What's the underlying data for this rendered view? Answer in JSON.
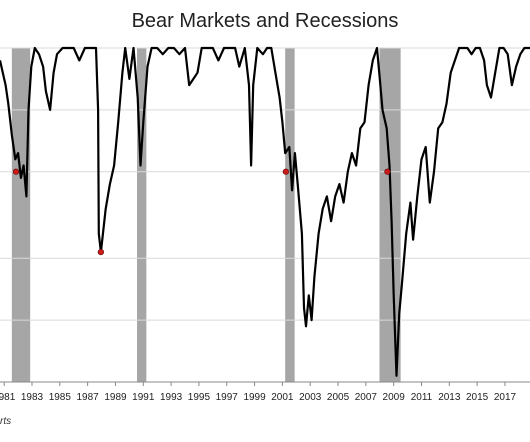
{
  "chart_data": {
    "type": "line",
    "title": "Bear Markets and Recessions",
    "xlabel": "",
    "ylabel": "",
    "x_ticks": [
      "1981",
      "1983",
      "1985",
      "1987",
      "1989",
      "1991",
      "1993",
      "1995",
      "1997",
      "1999",
      "2001",
      "2003",
      "2005",
      "2007",
      "2009",
      "2011",
      "2013",
      "2015",
      "2017"
    ],
    "xlim": [
      1980.7,
      2018.8
    ],
    "ylim": [
      -0.54,
      0
    ],
    "grid": "horizontal",
    "gridlines": [
      -0.54,
      -0.44,
      -0.34,
      -0.2,
      -0.1,
      0
    ],
    "recessions": [
      {
        "start": 1981.55,
        "end": 1982.87
      },
      {
        "start": 1990.55,
        "end": 1991.22
      },
      {
        "start": 2001.2,
        "end": 2001.88
      },
      {
        "start": 2007.98,
        "end": 2009.5
      }
    ],
    "series": [
      {
        "values": [
          [
            1980.7,
            -0.02
          ],
          [
            1980.9,
            -0.04
          ],
          [
            1981.1,
            -0.06
          ],
          [
            1981.3,
            -0.09
          ],
          [
            1981.55,
            -0.14
          ],
          [
            1981.8,
            -0.18
          ],
          [
            1982.0,
            -0.17
          ],
          [
            1982.2,
            -0.21
          ],
          [
            1982.4,
            -0.19
          ],
          [
            1982.6,
            -0.24
          ],
          [
            1982.75,
            -0.1
          ],
          [
            1982.95,
            -0.03
          ],
          [
            1983.2,
            0
          ],
          [
            1983.5,
            -0.01
          ],
          [
            1983.8,
            -0.03
          ],
          [
            1984.0,
            -0.07
          ],
          [
            1984.3,
            -0.1
          ],
          [
            1984.55,
            -0.04
          ],
          [
            1984.8,
            -0.01
          ],
          [
            1985.2,
            0
          ],
          [
            1985.6,
            0
          ],
          [
            1986.0,
            0
          ],
          [
            1986.4,
            -0.02
          ],
          [
            1986.8,
            0
          ],
          [
            1987.2,
            0
          ],
          [
            1987.6,
            0
          ],
          [
            1987.75,
            -0.1
          ],
          [
            1987.8,
            -0.3
          ],
          [
            1987.95,
            -0.33
          ],
          [
            1988.3,
            -0.26
          ],
          [
            1988.6,
            -0.22
          ],
          [
            1988.9,
            -0.19
          ],
          [
            1989.2,
            -0.12
          ],
          [
            1989.5,
            -0.04
          ],
          [
            1989.7,
            0
          ],
          [
            1990.0,
            -0.05
          ],
          [
            1990.3,
            0
          ],
          [
            1990.6,
            -0.08
          ],
          [
            1990.8,
            -0.19
          ],
          [
            1991.0,
            -0.12
          ],
          [
            1991.3,
            -0.03
          ],
          [
            1991.6,
            0
          ],
          [
            1992.0,
            0
          ],
          [
            1992.4,
            -0.01
          ],
          [
            1992.8,
            0
          ],
          [
            1993.2,
            0
          ],
          [
            1993.6,
            -0.01
          ],
          [
            1994.0,
            0
          ],
          [
            1994.3,
            -0.06
          ],
          [
            1994.6,
            -0.05
          ],
          [
            1994.9,
            -0.04
          ],
          [
            1995.2,
            0
          ],
          [
            1995.6,
            0
          ],
          [
            1996.0,
            0
          ],
          [
            1996.4,
            -0.02
          ],
          [
            1996.8,
            0
          ],
          [
            1997.2,
            0
          ],
          [
            1997.6,
            0
          ],
          [
            1997.9,
            -0.03
          ],
          [
            1998.3,
            0
          ],
          [
            1998.6,
            -0.06
          ],
          [
            1998.75,
            -0.19
          ],
          [
            1998.9,
            -0.06
          ],
          [
            1999.2,
            0
          ],
          [
            1999.6,
            -0.01
          ],
          [
            1999.9,
            0
          ],
          [
            2000.2,
            0
          ],
          [
            2000.5,
            -0.04
          ],
          [
            2000.8,
            -0.08
          ],
          [
            2001.0,
            -0.12
          ],
          [
            2001.2,
            -0.17
          ],
          [
            2001.5,
            -0.16
          ],
          [
            2001.7,
            -0.23
          ],
          [
            2001.9,
            -0.17
          ],
          [
            2002.1,
            -0.22
          ],
          [
            2002.4,
            -0.3
          ],
          [
            2002.55,
            -0.42
          ],
          [
            2002.7,
            -0.45
          ],
          [
            2002.9,
            -0.4
          ],
          [
            2003.1,
            -0.44
          ],
          [
            2003.3,
            -0.37
          ],
          [
            2003.6,
            -0.3
          ],
          [
            2003.9,
            -0.26
          ],
          [
            2004.2,
            -0.24
          ],
          [
            2004.5,
            -0.28
          ],
          [
            2004.8,
            -0.24
          ],
          [
            2005.1,
            -0.22
          ],
          [
            2005.4,
            -0.25
          ],
          [
            2005.7,
            -0.2
          ],
          [
            2006.0,
            -0.17
          ],
          [
            2006.3,
            -0.19
          ],
          [
            2006.6,
            -0.13
          ],
          [
            2006.9,
            -0.12
          ],
          [
            2007.2,
            -0.06
          ],
          [
            2007.5,
            -0.02
          ],
          [
            2007.8,
            0
          ],
          [
            2008.0,
            -0.05
          ],
          [
            2008.2,
            -0.1
          ],
          [
            2008.5,
            -0.13
          ],
          [
            2008.7,
            -0.19
          ],
          [
            2008.85,
            -0.28
          ],
          [
            2009.0,
            -0.4
          ],
          [
            2009.2,
            -0.53
          ],
          [
            2009.4,
            -0.43
          ],
          [
            2009.6,
            -0.38
          ],
          [
            2009.9,
            -0.3
          ],
          [
            2010.2,
            -0.25
          ],
          [
            2010.4,
            -0.31
          ],
          [
            2010.7,
            -0.24
          ],
          [
            2011.0,
            -0.18
          ],
          [
            2011.3,
            -0.16
          ],
          [
            2011.6,
            -0.25
          ],
          [
            2011.9,
            -0.2
          ],
          [
            2012.2,
            -0.13
          ],
          [
            2012.5,
            -0.12
          ],
          [
            2012.8,
            -0.09
          ],
          [
            2013.1,
            -0.04
          ],
          [
            2013.4,
            -0.02
          ],
          [
            2013.7,
            0
          ],
          [
            2014.0,
            0
          ],
          [
            2014.3,
            0
          ],
          [
            2014.6,
            -0.01
          ],
          [
            2014.9,
            0
          ],
          [
            2015.2,
            0
          ],
          [
            2015.5,
            -0.02
          ],
          [
            2015.7,
            -0.06
          ],
          [
            2016.0,
            -0.08
          ],
          [
            2016.3,
            -0.04
          ],
          [
            2016.6,
            0
          ],
          [
            2016.9,
            0
          ],
          [
            2017.2,
            -0.01
          ],
          [
            2017.5,
            -0.06
          ],
          [
            2017.8,
            -0.03
          ],
          [
            2018.1,
            -0.01
          ],
          [
            2018.4,
            0
          ],
          [
            2018.8,
            0
          ]
        ]
      }
    ],
    "markers": [
      {
        "x": 1981.85,
        "y": -0.2
      },
      {
        "x": 1987.95,
        "y": -0.33
      },
      {
        "x": 2001.25,
        "y": -0.2
      },
      {
        "x": 2008.55,
        "y": -0.2
      }
    ],
    "colors": {
      "line": "#000000",
      "recession_band": "#a6a6a6",
      "marker_fill": "#cc1b1b",
      "grid": "#d9d9d9"
    }
  },
  "source_note": "rts"
}
